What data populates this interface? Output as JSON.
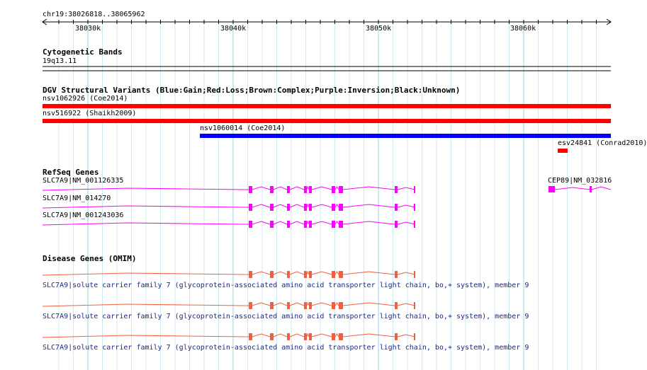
{
  "ruler": {
    "region": "chr19:38026818..38065962",
    "ticks": [
      "38030k",
      "38040k",
      "38050k",
      "38060k"
    ]
  },
  "cytoband": {
    "title": "Cytogenetic Bands",
    "band": "19q13.11"
  },
  "dgv": {
    "title": "DGV Structural Variants (Blue:Gain;Red:Loss;Brown:Complex;Purple:Inversion;Black:Unknown)",
    "variants": [
      {
        "label": "nsv1062926 (Coe2014)",
        "color": "#ff0000",
        "type": "Loss"
      },
      {
        "label": "nsv516922 (Shaikh2009)",
        "color": "#ff0000",
        "type": "Loss"
      },
      {
        "label": "nsv1060014 (Coe2014)",
        "color": "#0000ff",
        "type": "Gain"
      },
      {
        "label": "esv24841 (Conrad2010)",
        "color": "#ff0000",
        "type": "Loss"
      }
    ]
  },
  "refseq": {
    "title": "RefSeq Genes",
    "color": "#ff00ff",
    "genes": [
      {
        "label": "SLC7A9|NM_001126335"
      },
      {
        "label": "SLC7A9|NM_014270"
      },
      {
        "label": "SLC7A9|NM_001243036"
      },
      {
        "label": "CEP89|NM_032816"
      }
    ]
  },
  "omim": {
    "title": "Disease Genes (OMIM)",
    "color": "#f06040",
    "entries": [
      {
        "label": "SLC7A9|solute carrier family 7 (glycoprotein-associated amino acid transporter light chain, bo,+ system), member 9"
      },
      {
        "label": "SLC7A9|solute carrier family 7 (glycoprotein-associated amino acid transporter light chain, bo,+ system), member 9"
      },
      {
        "label": "SLC7A9|solute carrier family 7 (glycoprotein-associated amino acid transporter light chain, bo,+ system), member 9"
      }
    ]
  }
}
